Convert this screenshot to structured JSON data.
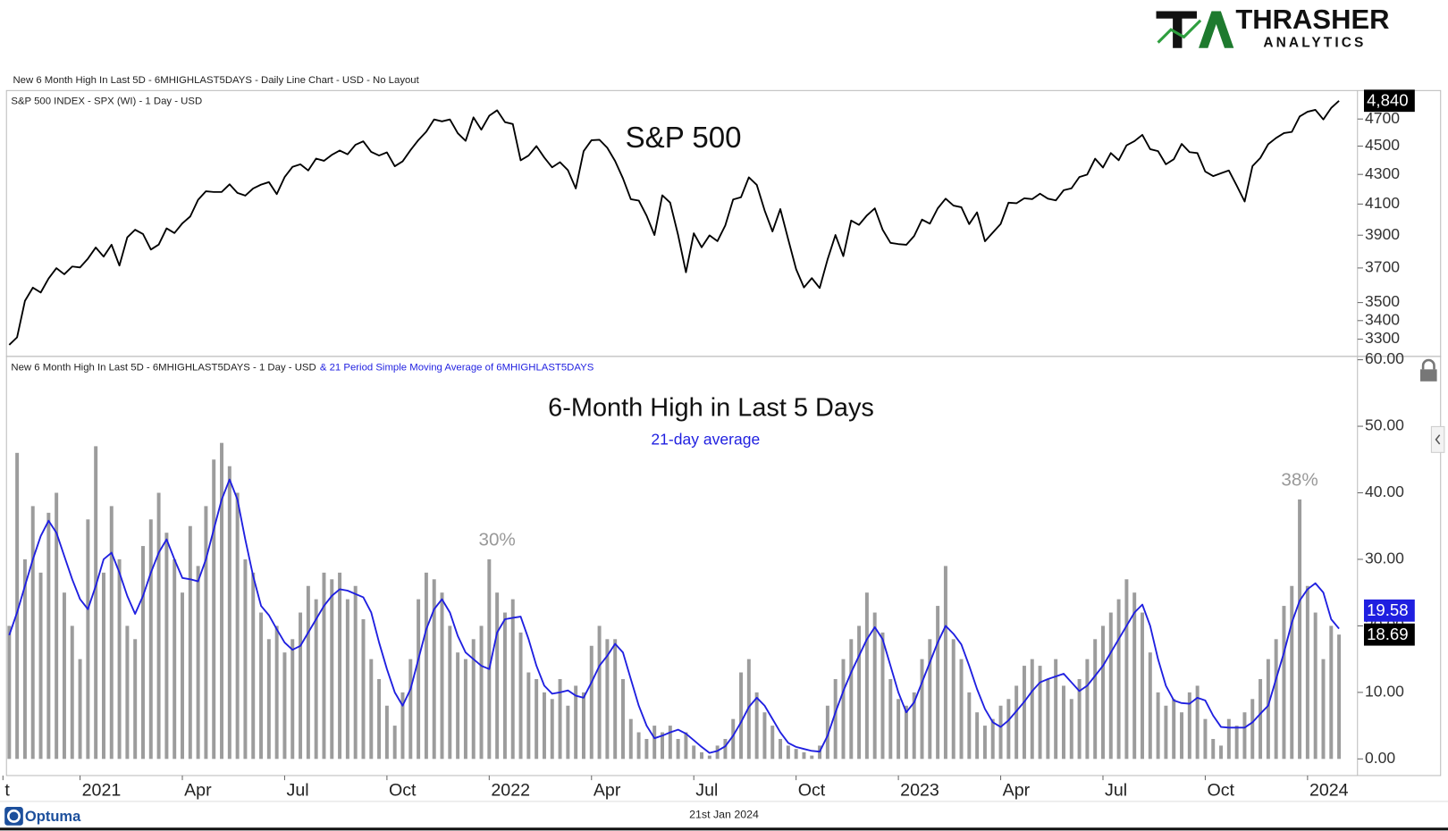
{
  "logo": {
    "name": "THRASHER",
    "tagline": "ANALYTICS"
  },
  "header": {
    "title": "New 6 Month High In Last 5D - 6MHIGHLAST5DAYS - Daily Line Chart - USD - No Layout"
  },
  "chart_data": [
    {
      "type": "line",
      "title": "S&P 500",
      "log_scale": true,
      "grid": false,
      "ylim": [
        3210,
        4920
      ],
      "yticks": [
        3300,
        3400,
        3500,
        3700,
        3900,
        4100,
        4300,
        4500,
        4700
      ],
      "series": [
        {
          "name": "S&P 500 INDEX - SPX (WI) - 1 Day - USD",
          "color": "#000000",
          "values": [
            3270,
            3310,
            3509,
            3585,
            3557,
            3638,
            3699,
            3663,
            3709,
            3703,
            3756,
            3824,
            3768,
            3841,
            3714,
            3886,
            3934,
            3907,
            3811,
            3842,
            3943,
            3913,
            3975,
            4019,
            4128,
            4185,
            4180,
            4181,
            4232,
            4174,
            4156,
            4204,
            4230,
            4247,
            4166,
            4281,
            4352,
            4370,
            4327,
            4411,
            4395,
            4437,
            4468,
            4441,
            4509,
            4535,
            4458,
            4432,
            4455,
            4357,
            4391,
            4471,
            4544,
            4605,
            4697,
            4682,
            4697,
            4594,
            4538,
            4712,
            4620,
            4725,
            4766,
            4677,
            4662,
            4398,
            4432,
            4500,
            4418,
            4349,
            4385,
            4329,
            4204,
            4463,
            4543,
            4546,
            4488,
            4393,
            4272,
            4132,
            4123,
            4024,
            3901,
            4158,
            4109,
            3901,
            3675,
            3912,
            3825,
            3899,
            3863,
            3962,
            4130,
            4145,
            4280,
            4228,
            4058,
            3924,
            4067,
            3873,
            3693,
            3586,
            3640,
            3583,
            3752,
            3901,
            3771,
            3993,
            3965,
            4026,
            4072,
            3934,
            3852,
            3845,
            3840,
            3895,
            3999,
            3973,
            4071,
            4136,
            4090,
            4079,
            3970,
            4046,
            3862,
            3917,
            3971,
            4109,
            4105,
            4138,
            4133,
            4169,
            4136,
            4124,
            4192,
            4205,
            4282,
            4299,
            4410,
            4348,
            4450,
            4399,
            4505,
            4536,
            4582,
            4478,
            4464,
            4370,
            4406,
            4516,
            4457,
            4450,
            4320,
            4288,
            4308,
            4327,
            4224,
            4117,
            4358,
            4415,
            4514,
            4559,
            4595,
            4604,
            4719,
            4755,
            4770,
            4697,
            4784,
            4840
          ],
          "value_labels": [
            null,
            null,
            null,
            null,
            null,
            null,
            null,
            null,
            null,
            null,
            null,
            null,
            null,
            null,
            null,
            null,
            null,
            null,
            null,
            null,
            null,
            null,
            null,
            null,
            null,
            null,
            null,
            null,
            null,
            null,
            null,
            null,
            null,
            null,
            null,
            null,
            null,
            null,
            null,
            null,
            null,
            null,
            null,
            null,
            null,
            null,
            null,
            null,
            null,
            null,
            null,
            null,
            null,
            null,
            null,
            null,
            null,
            null,
            null,
            null,
            null,
            null,
            null,
            null,
            null,
            null,
            null,
            null,
            null,
            null,
            null,
            null,
            null,
            null,
            null,
            null,
            null,
            null,
            null,
            null,
            null,
            null,
            null,
            null,
            null,
            null,
            null,
            null,
            null,
            null,
            null,
            null,
            null,
            null,
            null,
            null,
            null,
            null,
            null,
            null,
            null,
            null,
            null,
            null,
            null,
            null,
            null,
            null,
            null,
            null,
            null,
            null,
            null,
            null,
            null,
            null,
            null,
            null,
            null,
            null,
            null,
            null,
            null,
            null,
            null,
            null,
            null,
            null,
            null,
            null,
            null,
            null,
            null,
            null,
            null,
            null,
            null,
            null,
            null,
            null,
            null,
            null,
            null,
            null,
            null,
            null,
            null,
            null,
            null,
            null,
            null,
            null,
            null,
            null,
            null,
            null,
            null,
            null,
            null,
            null,
            null,
            null,
            null,
            null,
            null,
            null,
            null,
            null,
            null,
            "4,840"
          ]
        }
      ]
    },
    {
      "type": "bar",
      "title": "6-Month High in Last 5 Days",
      "subtitle": "21-day average",
      "grid": false,
      "ylim": [
        -2.5,
        60.5
      ],
      "yticks": [
        {
          "value": 0,
          "label": "0.00"
        },
        {
          "value": 10,
          "label": "10.00"
        },
        {
          "value": 20,
          "label": "20.00"
        },
        {
          "value": 30,
          "label": "30.00"
        },
        {
          "value": 40,
          "label": "40.00"
        },
        {
          "value": 50,
          "label": "50.00"
        },
        {
          "value": 60,
          "label": "60.00"
        }
      ],
      "xticks": [
        {
          "value": -0.8,
          "label": "t"
        },
        {
          "value": 9,
          "label": "2021"
        },
        {
          "value": 22,
          "label": "Apr"
        },
        {
          "value": 35,
          "label": "Jul"
        },
        {
          "value": 48,
          "label": "Oct"
        },
        {
          "value": 61,
          "label": "2022"
        },
        {
          "value": 74,
          "label": "Apr"
        },
        {
          "value": 87,
          "label": "Jul"
        },
        {
          "value": 100,
          "label": "Oct"
        },
        {
          "value": 113,
          "label": "2023"
        },
        {
          "value": 126,
          "label": "Apr"
        },
        {
          "value": 139,
          "label": "Jul"
        },
        {
          "value": 152,
          "label": "Oct"
        },
        {
          "value": 165,
          "label": "2024"
        }
      ],
      "annotations": [
        {
          "label": "30%",
          "x": 62,
          "y": 30
        },
        {
          "label": "38%",
          "x": 164,
          "y": 39
        }
      ],
      "series": [
        {
          "name": "New 6 Month High In Last 5D - 6MHIGHLAST5DAYS - 1 Day - USD",
          "type": "bar",
          "color": "#9c9c9c",
          "values": [
            20,
            46,
            30,
            38,
            28,
            37,
            40,
            25,
            20,
            15,
            36,
            47,
            28,
            38,
            30,
            20,
            18,
            32,
            36,
            40,
            34,
            30,
            25,
            35,
            29,
            38,
            45,
            47.5,
            44,
            40,
            30,
            28,
            22,
            18,
            20,
            16,
            18,
            22,
            26,
            24,
            28,
            27,
            28,
            24,
            26,
            21,
            15,
            12,
            8,
            5,
            10,
            15,
            24,
            28,
            27,
            25,
            20,
            16,
            15,
            18,
            20,
            30,
            25,
            22,
            24,
            19,
            13,
            12,
            10,
            9,
            12,
            8,
            11,
            10,
            17,
            20,
            18,
            18,
            12,
            6,
            4,
            3,
            5,
            4,
            5,
            3,
            4,
            2,
            1,
            0.5,
            2,
            3,
            6,
            13,
            15,
            10,
            7,
            5,
            3,
            2,
            1.5,
            1,
            0.5,
            2,
            8,
            12,
            15,
            18,
            20,
            25,
            22,
            19,
            12,
            9,
            8,
            10,
            15,
            18,
            23,
            29,
            18,
            15,
            10,
            7,
            5,
            6,
            8,
            9,
            11,
            14,
            15,
            14,
            12,
            15,
            11,
            9,
            12,
            15,
            18,
            20,
            22,
            24,
            27,
            25,
            22,
            16,
            10,
            8,
            9,
            7,
            10,
            11,
            6,
            3,
            2,
            6,
            5,
            7,
            9,
            12,
            15,
            18,
            23,
            26,
            39,
            26,
            22,
            15,
            20,
            18.69
          ]
        },
        {
          "name": "& 21 Period Simple Moving Average of 6MHIGHLAST5DAYS",
          "type": "line",
          "color": "#1f1fe0",
          "values": [
            18.6,
            22,
            26,
            30,
            33.5,
            35.8,
            34,
            30.5,
            27,
            24,
            22.5,
            26,
            30,
            31,
            28,
            24.5,
            21.8,
            24.5,
            28,
            31,
            33,
            30,
            27.2,
            27,
            26.7,
            30,
            34.5,
            39,
            42,
            39,
            33,
            27.5,
            23,
            21.6,
            19.5,
            17.5,
            16.4,
            17,
            19,
            21,
            23,
            24.5,
            25.5,
            25.3,
            24.8,
            24.3,
            22,
            17.5,
            13.5,
            10,
            8,
            10.5,
            15,
            19.5,
            22.5,
            24,
            22,
            18.5,
            16,
            15,
            14,
            13.5,
            19,
            21,
            21.2,
            21.4,
            18,
            14,
            11,
            9.8,
            10,
            10.3,
            9.5,
            9.2,
            11.5,
            14,
            15.5,
            17.3,
            16,
            12,
            8,
            5,
            3.1,
            3.5,
            4,
            4.4,
            3.8,
            2.8,
            1.8,
            0.9,
            1.2,
            1.9,
            3.5,
            5.5,
            7.8,
            9.2,
            8,
            6,
            4,
            2.4,
            1.8,
            1.5,
            1.2,
            1.1,
            3.5,
            7,
            10.2,
            13,
            15.5,
            18,
            19.8,
            18,
            14,
            10,
            7,
            8.5,
            11.5,
            14.5,
            17.5,
            20,
            18.8,
            17.2,
            14,
            10.5,
            7.5,
            5.5,
            4.8,
            5.8,
            7.2,
            8.6,
            10.2,
            11.5,
            12,
            12.4,
            12.8,
            11.5,
            10.2,
            11,
            12.5,
            14,
            16,
            18,
            20,
            22,
            23.2,
            20,
            15,
            11,
            8.8,
            8.4,
            8.3,
            9.2,
            8.8,
            6.5,
            4.8,
            4.7,
            4.7,
            4.7,
            5.5,
            6.8,
            8,
            12,
            16,
            20.5,
            23.8,
            25.5,
            26.4,
            25,
            21,
            19.58
          ]
        }
      ]
    }
  ],
  "footer": {
    "brand": "Optuma",
    "date": "21st Jan 2024"
  }
}
